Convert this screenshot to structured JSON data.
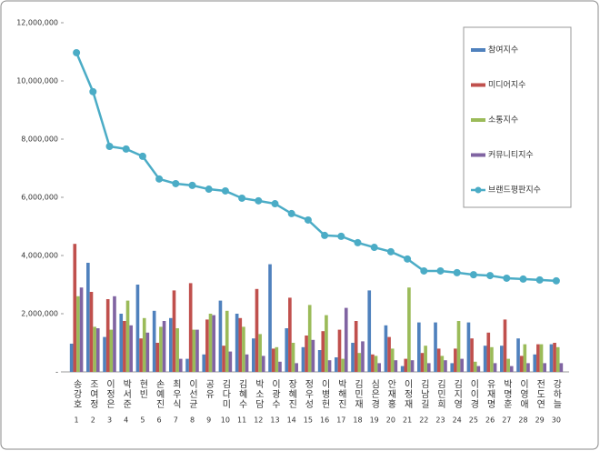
{
  "chart_data": {
    "type": "bar",
    "categories": [
      "송강호",
      "조여정",
      "이정은",
      "박서준",
      "현빈",
      "손예진",
      "최우식",
      "이선균",
      "공유",
      "김다미",
      "김혜수",
      "박소담",
      "이광수",
      "장혜진",
      "정우성",
      "이병헌",
      "박해진",
      "김민재",
      "심은경",
      "안재홍",
      "이정재",
      "김남길",
      "김민희",
      "김지영",
      "이이경",
      "유재명",
      "박명훈",
      "이영애",
      "전도연",
      "강하늘"
    ],
    "rank_labels": [
      1,
      2,
      3,
      4,
      5,
      6,
      7,
      8,
      9,
      10,
      11,
      12,
      13,
      14,
      15,
      16,
      17,
      18,
      19,
      20,
      21,
      22,
      23,
      24,
      25,
      26,
      27,
      28,
      29,
      30
    ],
    "ylim": [
      0,
      12000000
    ],
    "yticks": [
      {
        "value": 0,
        "label": "-"
      },
      {
        "value": 2000000,
        "label": "2,000,000"
      },
      {
        "value": 4000000,
        "label": "4,000,000"
      },
      {
        "value": 6000000,
        "label": "6,000,000"
      },
      {
        "value": 8000000,
        "label": "8,000,000"
      },
      {
        "value": 10000000,
        "label": "10,000,000"
      },
      {
        "value": 12000000,
        "label": "12,000,000"
      }
    ],
    "legend": "right",
    "series": [
      {
        "name": "참여지수",
        "type": "bar",
        "color": "#4f81bd",
        "values": [
          970000,
          3750000,
          1200000,
          2000000,
          3000000,
          2100000,
          1850000,
          450000,
          600000,
          2450000,
          2000000,
          1150000,
          3700000,
          1500000,
          850000,
          750000,
          500000,
          1000000,
          2800000,
          1600000,
          200000,
          1700000,
          1700000,
          300000,
          1700000,
          900000,
          900000,
          1150000,
          600000,
          950000
        ]
      },
      {
        "name": "미디어지수",
        "type": "bar",
        "color": "#c0504d",
        "values": [
          4400000,
          2750000,
          2500000,
          1750000,
          1150000,
          1000000,
          2800000,
          3050000,
          1800000,
          900000,
          1850000,
          2850000,
          800000,
          2550000,
          1250000,
          1400000,
          1450000,
          1750000,
          600000,
          1200000,
          450000,
          650000,
          800000,
          800000,
          1150000,
          1350000,
          1800000,
          550000,
          950000,
          1000000
        ]
      },
      {
        "name": "소통지수",
        "type": "bar",
        "color": "#9bbb59",
        "values": [
          2600000,
          1550000,
          1450000,
          2450000,
          1850000,
          1550000,
          1500000,
          1450000,
          2000000,
          2100000,
          1550000,
          1300000,
          850000,
          1000000,
          2300000,
          1950000,
          450000,
          650000,
          550000,
          800000,
          2900000,
          900000,
          550000,
          1750000,
          350000,
          850000,
          450000,
          950000,
          950000,
          850000
        ]
      },
      {
        "name": "커뮤니티지수",
        "type": "bar",
        "color": "#8064a2",
        "values": [
          2900000,
          1500000,
          2600000,
          1600000,
          1350000,
          1750000,
          450000,
          1450000,
          1950000,
          700000,
          600000,
          550000,
          350000,
          300000,
          1100000,
          400000,
          2200000,
          1050000,
          300000,
          400000,
          400000,
          300000,
          400000,
          450000,
          200000,
          300000,
          200000,
          300000,
          300000,
          300000
        ]
      },
      {
        "name": "브랜드평판지수",
        "type": "line",
        "color": "#4bacc6",
        "values": [
          10970000,
          9630000,
          7750000,
          7660000,
          7410000,
          6630000,
          6470000,
          6410000,
          6280000,
          6220000,
          5970000,
          5880000,
          5780000,
          5440000,
          5220000,
          4690000,
          4660000,
          4440000,
          4280000,
          4130000,
          3880000,
          3470000,
          3470000,
          3410000,
          3340000,
          3310000,
          3220000,
          3190000,
          3160000,
          3130000
        ]
      }
    ]
  }
}
